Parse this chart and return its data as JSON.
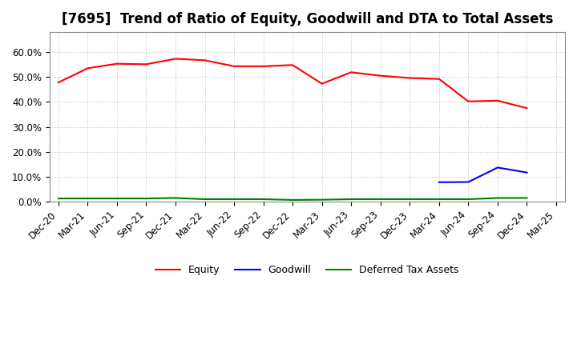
{
  "title": "[7695]  Trend of Ratio of Equity, Goodwill and DTA to Total Assets",
  "x_labels": [
    "Dec-20",
    "Mar-21",
    "Jun-21",
    "Sep-21",
    "Dec-21",
    "Mar-22",
    "Jun-22",
    "Sep-22",
    "Dec-22",
    "Mar-23",
    "Jun-23",
    "Sep-23",
    "Dec-23",
    "Mar-24",
    "Jun-24",
    "Sep-24",
    "Dec-24",
    "Mar-25"
  ],
  "equity": [
    0.478,
    0.535,
    0.553,
    0.551,
    0.573,
    0.567,
    0.543,
    0.543,
    0.548,
    0.473,
    0.519,
    0.505,
    0.496,
    0.492,
    0.402,
    0.405,
    0.375,
    null
  ],
  "goodwill": [
    null,
    null,
    null,
    null,
    null,
    null,
    null,
    null,
    null,
    null,
    null,
    null,
    null,
    0.078,
    0.079,
    0.137,
    0.117,
    null
  ],
  "dta": [
    0.013,
    0.013,
    0.013,
    0.013,
    0.015,
    0.01,
    0.01,
    0.01,
    0.007,
    0.008,
    0.01,
    0.01,
    0.01,
    0.01,
    0.01,
    0.015,
    0.015,
    null
  ],
  "ylim": [
    0.0,
    0.68
  ],
  "yticks": [
    0.0,
    0.1,
    0.2,
    0.3,
    0.4,
    0.5,
    0.6
  ],
  "ytick_labels": [
    "0.0%",
    "10.0%",
    "20.0%",
    "30.0%",
    "40.0%",
    "50.0%",
    "60.0%"
  ],
  "equity_color": "#ff0000",
  "goodwill_color": "#0000ff",
  "dta_color": "#008000",
  "background_color": "#ffffff",
  "grid_color": "#b0b0b0",
  "title_fontsize": 12,
  "tick_fontsize": 8.5,
  "legend_labels": [
    "Equity",
    "Goodwill",
    "Deferred Tax Assets"
  ],
  "linewidth": 1.5
}
